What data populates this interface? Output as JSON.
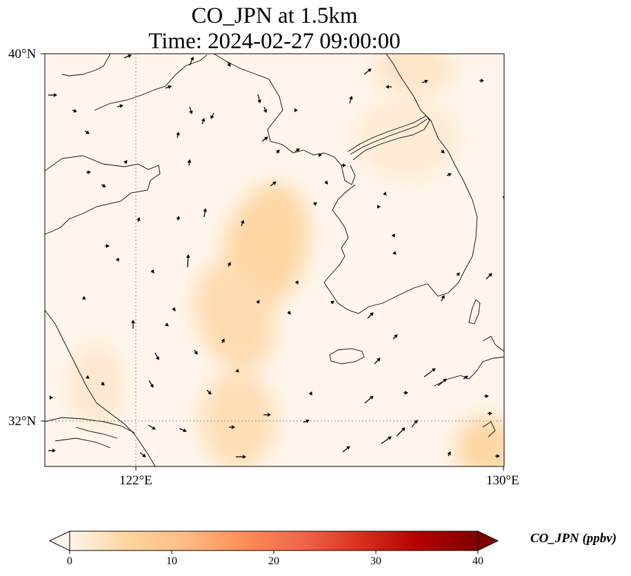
{
  "title": "CO_JPN at 1.5km",
  "subtitle": "Time: 2024-02-27 09:00:00",
  "map": {
    "extent": {
      "lon": [
        119,
        130
      ],
      "lat": [
        31,
        40
      ]
    },
    "lat_ticks": [
      {
        "value": 40,
        "label": "40°N"
      },
      {
        "value": 32,
        "label": "32°N"
      }
    ],
    "lon_ticks": [
      {
        "value": 122,
        "label": "122°E"
      },
      {
        "value": 130,
        "label": "130°E"
      }
    ],
    "gridlines": "dotted",
    "field_variable": "CO_JPN",
    "field_levels_ppbv": [
      {
        "region": "background",
        "value": 2
      },
      {
        "region": "central-yellow-sea-plume",
        "value": 9
      },
      {
        "region": "southern-plume",
        "value": 8
      },
      {
        "region": "korea-north",
        "value": 5
      },
      {
        "region": "southeast-corner",
        "value": 9
      }
    ],
    "wind_vectors": "black arrows"
  },
  "colorbar": {
    "label": "CO_JPN (ppbv)",
    "min": 0,
    "max": 40,
    "ticks": [
      "0",
      "10",
      "20",
      "30",
      "40"
    ],
    "extend": "both",
    "colormap": [
      "#fff5eb",
      "#fdd49e",
      "#fdbb84",
      "#fc8d59",
      "#ef6548",
      "#d7301f",
      "#b30000",
      "#7f0000"
    ]
  }
}
